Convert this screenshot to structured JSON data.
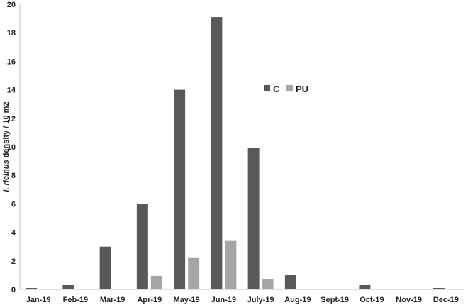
{
  "chart_data": {
    "type": "bar",
    "title": "",
    "xlabel": "",
    "ylabel_italic": "I. ricinus",
    "ylabel_rest": " density / 10 m2",
    "categories": [
      "Jan-19",
      "Feb-19",
      "Mar-19",
      "Apr-19",
      "May-19",
      "Jun-19",
      "July-19",
      "Aug-19",
      "Sept-19",
      "Oct-19",
      "Nov-19",
      "Dec-19"
    ],
    "series": [
      {
        "name": "C",
        "color": "#595959",
        "values": [
          0.1,
          0.3,
          3.0,
          6.0,
          14.0,
          19.1,
          9.9,
          1.0,
          0,
          0.3,
          0,
          0.1
        ]
      },
      {
        "name": "PU",
        "color": "#a6a6a6",
        "values": [
          0,
          0,
          0,
          0.95,
          2.2,
          3.4,
          0.7,
          0,
          0,
          0,
          0,
          0
        ]
      }
    ],
    "ylim": [
      0,
      20
    ],
    "yticks": [
      0,
      2,
      4,
      6,
      8,
      10,
      12,
      14,
      16,
      18,
      20
    ],
    "grid": false,
    "legend_position": "upper-center"
  }
}
